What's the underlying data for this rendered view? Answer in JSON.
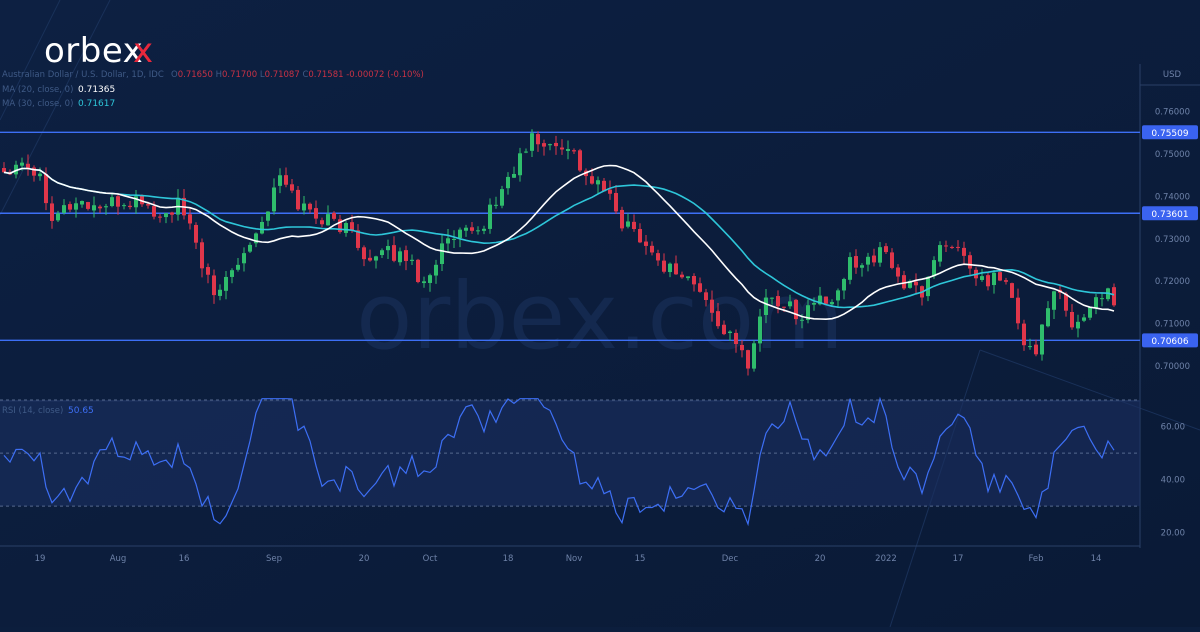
{
  "brand": {
    "logo_text": "orbex",
    "watermark": "orbex.com",
    "accent": "#e8283c"
  },
  "header": {
    "symbol": "Australian Dollar / U.S. Dollar, 1D, IDC",
    "ohlc": [
      {
        "k": "O",
        "v": "0.71650"
      },
      {
        "k": "H",
        "v": "0.71700"
      },
      {
        "k": "L",
        "v": "0.71087"
      },
      {
        "k": "C",
        "v": "0.71581"
      }
    ],
    "change": "-0.00072 (-0.10%)",
    "ma20_label": "MA (20, close, 0)",
    "ma20_value": "0.71365",
    "ma30_label": "MA (30, close, 0)",
    "ma30_value": "0.71617",
    "rsi_label": "RSI (14, close)",
    "rsi_value": "50.65",
    "currency": "USD"
  },
  "colors": {
    "background": "#0c1e3d",
    "up": "#2fbd6c",
    "down": "#e0364a",
    "ma20": "#ffffff",
    "ma30": "#2ec6d9",
    "hline": "#3d6ff5",
    "rsi": "#3d6ff5"
  },
  "chart_data": [
    {
      "type": "candlestick",
      "title": "Australian Dollar / U.S. Dollar, 1D, IDC",
      "ylim": [
        0.692,
        0.766
      ],
      "yticks": [
        "0.76000",
        "0.75000",
        "0.74000",
        "0.73000",
        "0.72000",
        "0.71000",
        "0.70000"
      ],
      "ytick_values": [
        0.76,
        0.75,
        0.74,
        0.73,
        0.72,
        0.71,
        0.7
      ],
      "xticks": [
        "19",
        "Aug",
        "16",
        "Sep",
        "20",
        "Oct",
        "18",
        "Nov",
        "15",
        "Dec",
        "20",
        "2022",
        "17",
        "Feb",
        "14"
      ],
      "xtick_index": [
        6,
        19,
        30,
        45,
        60,
        71,
        84,
        95,
        106,
        121,
        136,
        147,
        159,
        172,
        182
      ],
      "hlines": [
        {
          "label": "0.75509",
          "value": 0.75509
        },
        {
          "label": "0.73601",
          "value": 0.73601
        },
        {
          "label": "0.70606",
          "value": 0.70606
        }
      ],
      "series": [
        {
          "name": "MA (20, close, 0)",
          "value": "0.71365"
        },
        {
          "name": "MA (30, close, 0)",
          "value": "0.71617"
        }
      ],
      "anchors": [
        [
          0,
          0.746
        ],
        [
          3,
          0.749
        ],
        [
          6,
          0.7445
        ],
        [
          8,
          0.736
        ],
        [
          12,
          0.7385
        ],
        [
          16,
          0.7375
        ],
        [
          20,
          0.7385
        ],
        [
          23,
          0.739
        ],
        [
          26,
          0.7345
        ],
        [
          29,
          0.738
        ],
        [
          32,
          0.729
        ],
        [
          35,
          0.7155
        ],
        [
          38,
          0.7235
        ],
        [
          41,
          0.7295
        ],
        [
          43,
          0.734
        ],
        [
          46,
          0.7445
        ],
        [
          49,
          0.7385
        ],
        [
          52,
          0.7355
        ],
        [
          55,
          0.734
        ],
        [
          58,
          0.7315
        ],
        [
          61,
          0.7245
        ],
        [
          64,
          0.7265
        ],
        [
          67,
          0.726
        ],
        [
          70,
          0.7195
        ],
        [
          73,
          0.728
        ],
        [
          76,
          0.7305
        ],
        [
          79,
          0.7315
        ],
        [
          82,
          0.739
        ],
        [
          85,
          0.7465
        ],
        [
          88,
          0.7535
        ],
        [
          91,
          0.7515
        ],
        [
          94,
          0.7525
        ],
        [
          97,
          0.7445
        ],
        [
          100,
          0.7415
        ],
        [
          103,
          0.734
        ],
        [
          106,
          0.731
        ],
        [
          109,
          0.7245
        ],
        [
          112,
          0.7225
        ],
        [
          115,
          0.7195
        ],
        [
          118,
          0.7125
        ],
        [
          121,
          0.7065
        ],
        [
          124,
          0.701
        ],
        [
          127,
          0.7165
        ],
        [
          130,
          0.7145
        ],
        [
          133,
          0.712
        ],
        [
          136,
          0.7165
        ],
        [
          138,
          0.7135
        ],
        [
          141,
          0.7245
        ],
        [
          144,
          0.7255
        ],
        [
          147,
          0.7265
        ],
        [
          150,
          0.719
        ],
        [
          153,
          0.7175
        ],
        [
          156,
          0.7285
        ],
        [
          158,
          0.7295
        ],
        [
          161,
          0.7215
        ],
        [
          164,
          0.7195
        ],
        [
          166,
          0.7215
        ],
        [
          168,
          0.716
        ],
        [
          170,
          0.704
        ],
        [
          172,
          0.7035
        ],
        [
          174,
          0.7155
        ],
        [
          176,
          0.7165
        ],
        [
          178,
          0.708
        ],
        [
          181,
          0.7145
        ],
        [
          183,
          0.7175
        ],
        [
          185,
          0.7158
        ]
      ]
    },
    {
      "type": "line",
      "title": "RSI (14, close)",
      "ylim": [
        15,
        70
      ],
      "yticks": [
        "60.00",
        "40.00",
        "20.00"
      ],
      "ytick_values": [
        60,
        40,
        20
      ],
      "bands": [
        70,
        50,
        30
      ],
      "series": [
        {
          "name": "RSI (14, close)",
          "value": "50.65"
        }
      ]
    }
  ]
}
